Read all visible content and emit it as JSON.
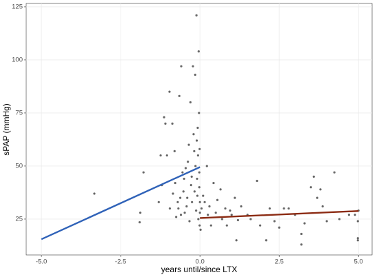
{
  "chart_data": {
    "type": "scatter",
    "xlabel": "years until/since LTX",
    "ylabel": "sPAP (mmHg)",
    "xlim": [
      -5.48,
      5.43
    ],
    "ylim": [
      8.1,
      126.6
    ],
    "xticks": [
      {
        "value": -5,
        "label": "-5.0"
      },
      {
        "value": -2.5,
        "label": "-2.5"
      },
      {
        "value": 0,
        "label": "0.0"
      },
      {
        "value": 2.5,
        "label": "2.5"
      },
      {
        "value": 5,
        "label": "5.0"
      }
    ],
    "yticks": [
      25,
      50,
      75,
      100,
      125
    ],
    "grid": true,
    "color": "#333333",
    "x": [
      -3.33,
      -1.9,
      -1.88,
      -1.78,
      -1.3,
      -1.24,
      -1.2,
      -1.13,
      -1.09,
      -1.04,
      -0.96,
      -0.95,
      -0.87,
      -0.85,
      -0.8,
      -0.78,
      -0.75,
      -0.7,
      -0.68,
      -0.65,
      -0.62,
      -0.6,
      -0.59,
      -0.55,
      -0.52,
      -0.5,
      -0.48,
      -0.45,
      -0.42,
      -0.4,
      -0.38,
      -0.35,
      -0.33,
      -0.3,
      -0.28,
      -0.26,
      -0.25,
      -0.22,
      -0.2,
      -0.18,
      -0.17,
      -0.15,
      -0.14,
      -0.12,
      -0.11,
      -0.1,
      -0.09,
      -0.08,
      -0.07,
      -0.06,
      -0.05,
      -0.04,
      -0.03,
      -0.02,
      -0.02,
      -0.01,
      0,
      0,
      -0.01,
      0.02,
      0.05,
      0.1,
      0.15,
      0.22,
      0.25,
      0.3,
      0.35,
      0.43,
      0.5,
      0.55,
      0.65,
      0.7,
      0.8,
      0.85,
      0.95,
      1.0,
      1.1,
      1.15,
      1.2,
      1.3,
      1.5,
      1.6,
      1.8,
      1.9,
      2.09,
      2.2,
      2.35,
      2.5,
      2.65,
      2.8,
      3.0,
      3.2,
      3.2,
      3.3,
      3.5,
      3.59,
      3.7,
      3.8,
      3.87,
      4.0,
      4.24,
      4.4,
      4.7,
      4.89,
      4.98,
      4.98,
      4.98,
      5.0
    ],
    "y": [
      37,
      23.5,
      28,
      47,
      33,
      55,
      41,
      73,
      70,
      55,
      85,
      30,
      70,
      37,
      57,
      42,
      26,
      33,
      30,
      83,
      35,
      27,
      97,
      47,
      38,
      44,
      28,
      49,
      31,
      35,
      52,
      60,
      24,
      80,
      41,
      45,
      33,
      97,
      65,
      57,
      38,
      93,
      50,
      29,
      121,
      62,
      44,
      36,
      68,
      55,
      25,
      104,
      75,
      47,
      40,
      58,
      33,
      28,
      22,
      20,
      30,
      36,
      33,
      50,
      27,
      31,
      22,
      42,
      28,
      34,
      39,
      25,
      30,
      22,
      29,
      27,
      35,
      15,
      24.5,
      31,
      27,
      25,
      43,
      22,
      15,
      30,
      24,
      21,
      30,
      30,
      27,
      18,
      13,
      23,
      40,
      45,
      35,
      39,
      31,
      24,
      47,
      25,
      27,
      27,
      24,
      16,
      15,
      29
    ],
    "lines": [
      {
        "color": "#2f62b8",
        "x": [
          -5,
          0
        ],
        "y": [
          15.5,
          49.5
        ]
      },
      {
        "color": "#8b2a12",
        "x": [
          0,
          5
        ],
        "y": [
          25.5,
          28.8
        ]
      }
    ]
  }
}
